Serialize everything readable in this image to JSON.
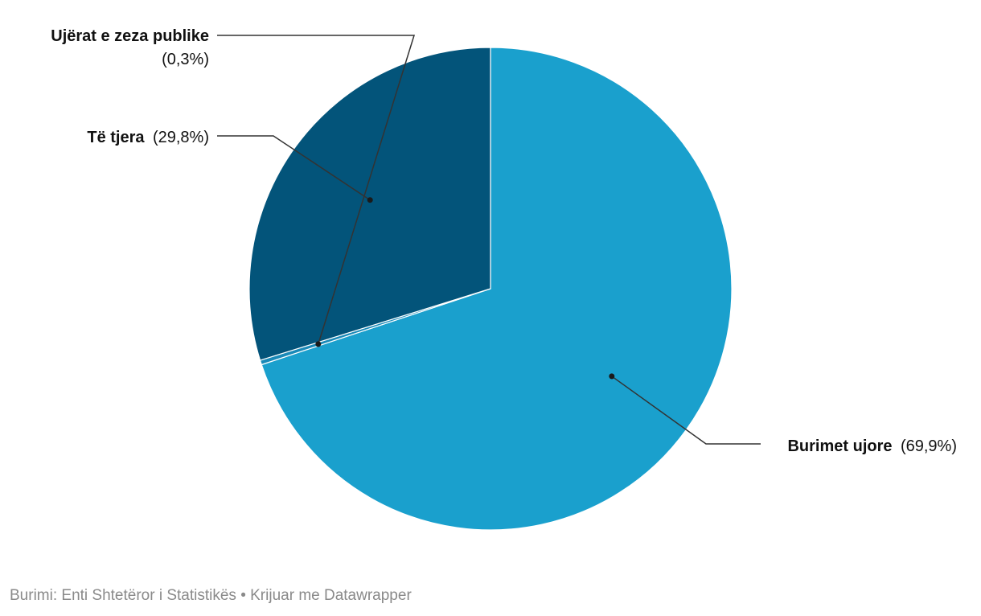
{
  "chart_data": {
    "type": "pie",
    "slices": [
      {
        "label": "Burimet ujore",
        "value": 69.9,
        "value_label": "(69,9%)",
        "color": "#1aa0cd"
      },
      {
        "label": "Ujërat e zeza publike",
        "value": 0.3,
        "value_label": "(0,3%)",
        "color": "#1a8ab8"
      },
      {
        "label": "Të tjera",
        "value": 29.8,
        "value_label": "(29,8%)",
        "color": "#03547a"
      }
    ]
  },
  "footer": {
    "text": "Burimi: Enti Shtetëror i Statistikës • Krijuar me Datawrapper"
  }
}
